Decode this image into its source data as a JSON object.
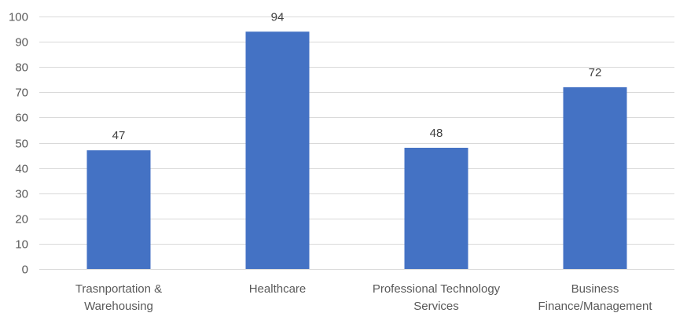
{
  "chart_data": {
    "type": "bar",
    "title": "",
    "xlabel": "",
    "ylabel": "",
    "categories": [
      [
        "Trasnportation &",
        "Warehousing"
      ],
      [
        "Healthcare"
      ],
      [
        "Professional Technology",
        "Services"
      ],
      [
        "Business",
        "Finance/Management"
      ]
    ],
    "values": [
      47,
      94,
      48,
      72
    ],
    "data_labels": [
      "47",
      "94",
      "48",
      "72"
    ],
    "ylim": [
      0,
      100
    ],
    "y_ticks": [
      0,
      10,
      20,
      30,
      40,
      50,
      60,
      70,
      80,
      90,
      100
    ],
    "grid": true,
    "legend": "none",
    "bar_color": "#4472c4"
  }
}
